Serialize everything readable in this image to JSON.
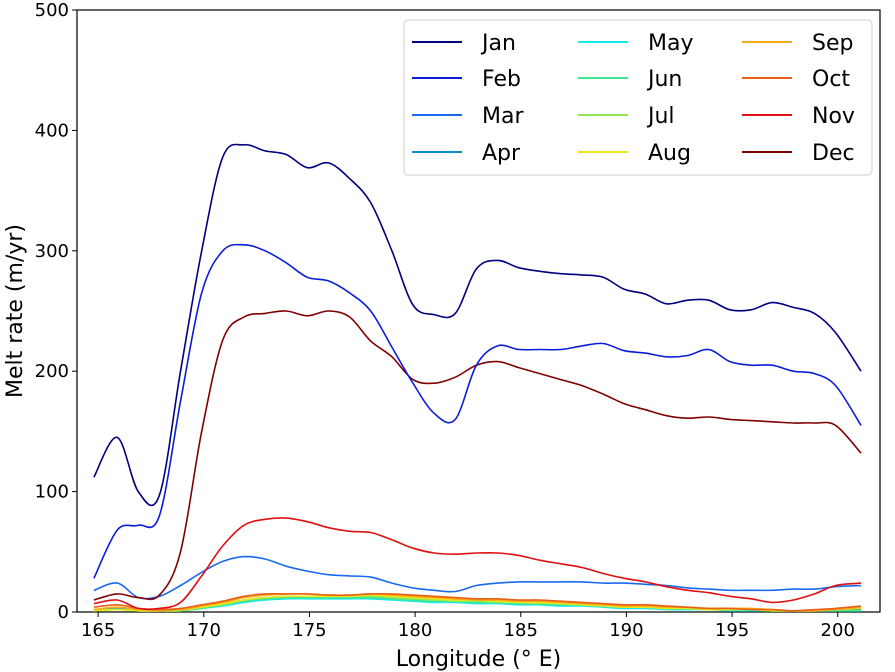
{
  "chart_data": {
    "type": "line",
    "title": "",
    "xlabel": "Longitude (° E)",
    "ylabel": "Melt rate (m/yr)",
    "xlim": [
      164,
      202
    ],
    "ylim": [
      0,
      500
    ],
    "xticks": [
      165,
      170,
      175,
      180,
      185,
      190,
      195,
      200
    ],
    "yticks": [
      0,
      100,
      200,
      300,
      400,
      500
    ],
    "grid": false,
    "legend": {
      "placement": "top-right",
      "columns": 3
    },
    "x": [
      164.8,
      165.9,
      166.9,
      167.9,
      168.9,
      169.9,
      170.9,
      171.9,
      172.9,
      173.9,
      174.9,
      175.9,
      176.9,
      177.9,
      178.9,
      179.9,
      180.9,
      181.9,
      182.9,
      183.9,
      184.9,
      185.9,
      186.9,
      187.9,
      188.9,
      189.9,
      190.9,
      191.9,
      192.9,
      193.9,
      194.9,
      195.9,
      196.9,
      197.9,
      198.9,
      199.9,
      201.1
    ],
    "series": [
      {
        "name": "Jan",
        "color": "#000080",
        "values": [
          112,
          145,
          100,
          97,
          200,
          300,
          378,
          388,
          383,
          380,
          369,
          373,
          360,
          340,
          300,
          255,
          247,
          248,
          285,
          292,
          286,
          283,
          281,
          280,
          278,
          268,
          264,
          256,
          259,
          259,
          251,
          251,
          257,
          253,
          248,
          232,
          200
        ]
      },
      {
        "name": "Feb",
        "color": "#0a1eda",
        "values": [
          28,
          68,
          72,
          80,
          175,
          265,
          300,
          305,
          300,
          290,
          278,
          275,
          265,
          250,
          220,
          190,
          165,
          160,
          205,
          221,
          218,
          218,
          218,
          221,
          223,
          217,
          215,
          212,
          213,
          218,
          208,
          205,
          205,
          200,
          198,
          188,
          155
        ]
      },
      {
        "name": "Mar",
        "color": "#1a6af0",
        "values": [
          18,
          24,
          12,
          13,
          22,
          33,
          42,
          46,
          44,
          38,
          34,
          31,
          30,
          29,
          24,
          20,
          18,
          17,
          22,
          24,
          25,
          25,
          25,
          25,
          24,
          24,
          23,
          22,
          20,
          19,
          18,
          18,
          18,
          19,
          19,
          21,
          22
        ]
      },
      {
        "name": "Apr",
        "color": "#0a8ec8",
        "values": [
          2,
          3,
          1,
          1,
          2,
          5,
          7,
          10,
          12,
          12,
          13,
          13,
          12,
          12,
          11,
          10,
          9,
          9,
          8,
          8,
          7,
          7,
          6,
          6,
          5,
          4,
          4,
          3,
          3,
          2,
          2,
          2,
          1,
          1,
          1,
          1,
          2
        ]
      },
      {
        "name": "May",
        "color": "#18e8e8",
        "values": [
          1,
          2,
          1,
          1,
          1,
          3,
          5,
          8,
          10,
          11,
          11,
          11,
          11,
          11,
          10,
          9,
          8,
          8,
          7,
          7,
          6,
          6,
          5,
          5,
          4,
          3,
          3,
          2,
          2,
          2,
          1,
          1,
          1,
          1,
          1,
          1,
          1
        ]
      },
      {
        "name": "Jun",
        "color": "#40e890",
        "values": [
          1,
          2,
          1,
          1,
          1,
          3,
          6,
          9,
          11,
          12,
          12,
          12,
          12,
          12,
          11,
          10,
          9,
          9,
          8,
          8,
          7,
          7,
          6,
          6,
          5,
          4,
          4,
          3,
          3,
          2,
          2,
          2,
          1,
          1,
          1,
          1,
          1
        ]
      },
      {
        "name": "Jul",
        "color": "#90e850",
        "values": [
          1,
          2,
          1,
          1,
          1,
          4,
          6,
          10,
          12,
          13,
          13,
          13,
          13,
          13,
          12,
          11,
          10,
          9,
          9,
          8,
          8,
          7,
          7,
          6,
          5,
          4,
          4,
          3,
          3,
          2,
          2,
          2,
          1,
          1,
          1,
          2,
          3
        ]
      },
      {
        "name": "Aug",
        "color": "#e8e818",
        "values": [
          1,
          2,
          1,
          1,
          2,
          4,
          7,
          10,
          12,
          13,
          13,
          13,
          13,
          14,
          13,
          12,
          11,
          10,
          10,
          9,
          8,
          8,
          7,
          6,
          5,
          4,
          4,
          3,
          3,
          2,
          2,
          2,
          1,
          1,
          1,
          2,
          3
        ]
      },
      {
        "name": "Sep",
        "color": "#f8a818",
        "values": [
          2,
          4,
          2,
          1,
          2,
          5,
          8,
          12,
          14,
          15,
          15,
          14,
          14,
          15,
          14,
          13,
          12,
          11,
          10,
          10,
          9,
          9,
          8,
          7,
          6,
          5,
          5,
          4,
          4,
          3,
          3,
          3,
          2,
          1,
          1,
          2,
          4
        ]
      },
      {
        "name": "Oct",
        "color": "#e86018",
        "values": [
          4,
          6,
          3,
          2,
          3,
          6,
          9,
          13,
          15,
          15,
          15,
          14,
          14,
          15,
          15,
          14,
          13,
          12,
          11,
          11,
          10,
          10,
          9,
          8,
          7,
          6,
          6,
          5,
          4,
          3,
          3,
          2,
          2,
          1,
          2,
          3,
          5
        ]
      },
      {
        "name": "Nov",
        "color": "#e01010",
        "values": [
          7,
          10,
          3,
          3,
          8,
          30,
          55,
          72,
          77,
          78,
          75,
          70,
          67,
          66,
          60,
          53,
          49,
          48,
          49,
          49,
          47,
          43,
          40,
          37,
          32,
          28,
          25,
          21,
          18,
          16,
          13,
          11,
          8,
          10,
          15,
          22,
          24
        ]
      },
      {
        "name": "Dec",
        "color": "#800000",
        "values": [
          10,
          15,
          12,
          14,
          50,
          150,
          226,
          245,
          248,
          250,
          246,
          250,
          245,
          225,
          212,
          193,
          190,
          195,
          205,
          208,
          203,
          198,
          193,
          188,
          181,
          173,
          168,
          163,
          161,
          162,
          160,
          159,
          158,
          157,
          157,
          155,
          132
        ]
      }
    ]
  }
}
